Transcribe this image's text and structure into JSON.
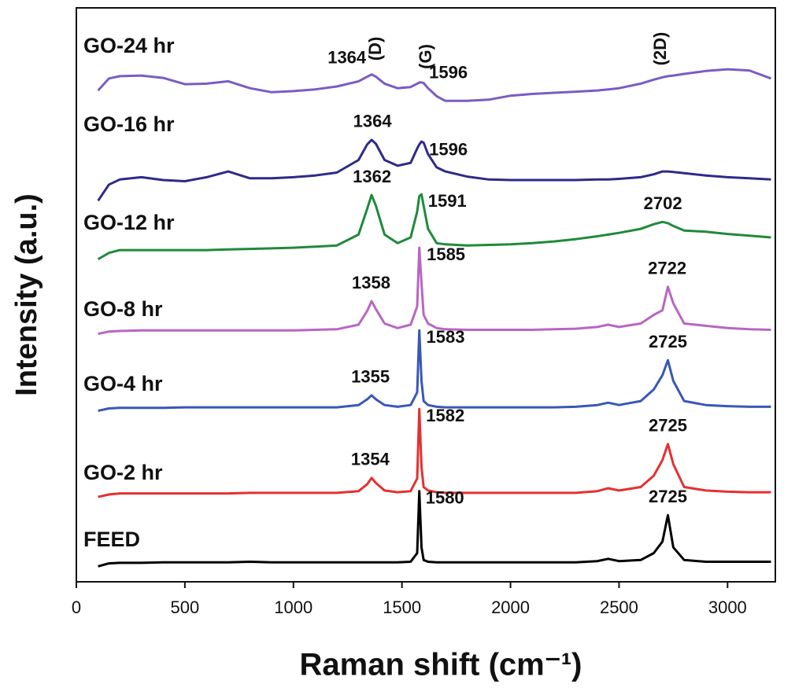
{
  "chart_data": {
    "type": "line",
    "x_label": "Raman shift (cm⁻¹)",
    "y_label": "Intensity (a.u.)",
    "xlim": [
      0,
      3220
    ],
    "xticks": [
      0,
      500,
      1000,
      1500,
      2000,
      2500,
      3000
    ],
    "ylim": [
      0,
      100
    ],
    "band_labels": [
      "(D)",
      "(G)",
      "(2D)"
    ],
    "x": [
      100,
      150,
      200,
      300,
      400,
      500,
      600,
      700,
      800,
      900,
      1000,
      1100,
      1200,
      1300,
      1340,
      1360,
      1380,
      1420,
      1480,
      1540,
      1570,
      1580,
      1590,
      1600,
      1620,
      1660,
      1700,
      1800,
      1900,
      2000,
      2100,
      2200,
      2300,
      2400,
      2450,
      2500,
      2600,
      2660,
      2700,
      2725,
      2750,
      2800,
      2900,
      3000,
      3100,
      3200
    ],
    "series": [
      {
        "name": "GO-24 hr",
        "color": "#7a5cc4",
        "peaks": [
          1364,
          1596
        ],
        "values": [
          85.6,
          87.7,
          88.1,
          88.2,
          87.8,
          86.7,
          86.8,
          87.2,
          86.0,
          85.3,
          85.5,
          85.8,
          86.3,
          87.2,
          88.0,
          88.4,
          88.0,
          86.8,
          86.0,
          86.2,
          86.8,
          87.0,
          87.0,
          86.9,
          86.0,
          84.6,
          83.8,
          83.8,
          84.0,
          84.7,
          85.0,
          85.2,
          85.4,
          85.6,
          85.8,
          86.0,
          86.8,
          87.5,
          87.9,
          88.1,
          88.2,
          88.5,
          89.0,
          89.3,
          89.1,
          87.7
        ]
      },
      {
        "name": "GO-16 hr",
        "color": "#2e2a8a",
        "peaks": [
          1364,
          1596
        ],
        "values": [
          66.4,
          69.2,
          70.1,
          70.5,
          70.0,
          69.8,
          70.5,
          71.5,
          70.3,
          70.3,
          70.5,
          70.8,
          71.3,
          73.5,
          76.2,
          77.0,
          76.3,
          73.5,
          72.5,
          73.0,
          75.5,
          76.2,
          76.7,
          76.5,
          74.5,
          72.2,
          71.5,
          70.6,
          70.1,
          70.0,
          70.0,
          70.0,
          70.0,
          70.1,
          70.1,
          70.2,
          70.5,
          71.0,
          71.5,
          71.5,
          71.4,
          71.2,
          70.8,
          70.5,
          70.3,
          70.1
        ]
      },
      {
        "name": "GO-12 hr",
        "color": "#1f8a3b",
        "peaks": [
          1362,
          1591,
          2702
        ],
        "values": [
          56.2,
          57.3,
          57.8,
          57.8,
          57.8,
          57.8,
          57.8,
          57.9,
          58.0,
          58.1,
          58.2,
          58.4,
          58.6,
          60.5,
          65.0,
          67.4,
          65.5,
          60.5,
          59.0,
          60.0,
          64.5,
          67.2,
          67.5,
          65.5,
          61.5,
          59.0,
          58.8,
          58.6,
          58.7,
          58.8,
          59.0,
          59.3,
          59.7,
          60.2,
          60.5,
          60.8,
          61.5,
          62.3,
          62.7,
          62.5,
          62.0,
          61.2,
          61.0,
          60.6,
          60.3,
          60.0
        ]
      },
      {
        "name": "GO-8 hr",
        "color": "#b866c2",
        "peaks": [
          1358,
          1585,
          2722
        ],
        "values": [
          43.2,
          43.6,
          43.7,
          43.8,
          43.8,
          43.8,
          43.8,
          43.8,
          43.8,
          43.8,
          43.8,
          43.9,
          44.0,
          44.8,
          47.2,
          48.9,
          47.5,
          45.0,
          44.2,
          44.8,
          48,
          58.2,
          52,
          46.5,
          45.0,
          44.2,
          44.0,
          43.9,
          43.9,
          43.9,
          43.9,
          44.0,
          44.1,
          44.4,
          44.8,
          44.4,
          45.0,
          46.5,
          47.3,
          51.4,
          48.5,
          45.0,
          44.6,
          44.2,
          44.0,
          43.9
        ]
      },
      {
        "name": "GO-4 hr",
        "color": "#3a57b8",
        "peaks": [
          1355,
          1583,
          2725
        ],
        "values": [
          29.8,
          30.2,
          30.3,
          30.3,
          30.3,
          30.4,
          30.4,
          30.4,
          30.4,
          30.4,
          30.4,
          30.4,
          30.4,
          30.8,
          31.8,
          32.5,
          31.8,
          30.8,
          30.5,
          30.8,
          33,
          43.8,
          35,
          31.5,
          30.8,
          30.5,
          30.4,
          30.4,
          30.4,
          30.4,
          30.4,
          30.4,
          30.5,
          30.8,
          31.2,
          30.8,
          31.5,
          33.5,
          36.0,
          38.6,
          35.0,
          31.5,
          30.8,
          30.6,
          30.5,
          30.5
        ]
      },
      {
        "name": "GO-2 hr",
        "color": "#e53030",
        "peaks": [
          1354,
          1582,
          2725
        ],
        "values": [
          14.8,
          15.2,
          15.4,
          15.4,
          15.4,
          15.4,
          15.4,
          15.4,
          15.5,
          15.5,
          15.5,
          15.5,
          15.5,
          15.8,
          17.0,
          18.1,
          17.2,
          15.9,
          15.6,
          15.8,
          18,
          30.1,
          20,
          16.5,
          15.9,
          15.6,
          15.5,
          15.5,
          15.5,
          15.5,
          15.5,
          15.5,
          15.5,
          15.8,
          16.3,
          15.9,
          16.5,
          18.5,
          21.2,
          24.0,
          20.5,
          16.5,
          15.9,
          15.7,
          15.6,
          15.6
        ]
      },
      {
        "name": "FEED",
        "color": "#000000",
        "peaks": [
          1580,
          2725
        ],
        "values": [
          2.7,
          3.2,
          3.3,
          3.3,
          3.4,
          3.4,
          3.4,
          3.4,
          3.5,
          3.4,
          3.4,
          3.4,
          3.4,
          3.4,
          3.4,
          3.4,
          3.4,
          3.4,
          3.4,
          3.5,
          5.0,
          15.8,
          6.0,
          3.8,
          3.5,
          3.4,
          3.4,
          3.4,
          3.4,
          3.4,
          3.4,
          3.4,
          3.4,
          3.6,
          4.0,
          3.6,
          3.8,
          5.0,
          7.0,
          11.6,
          6.0,
          3.8,
          3.5,
          3.5,
          3.5,
          3.5
        ]
      }
    ]
  }
}
